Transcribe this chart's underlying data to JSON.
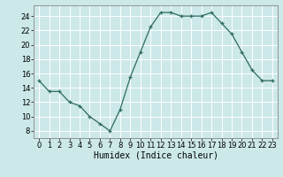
{
  "x": [
    0,
    1,
    2,
    3,
    4,
    5,
    6,
    7,
    8,
    9,
    10,
    11,
    12,
    13,
    14,
    15,
    16,
    17,
    18,
    19,
    20,
    21,
    22,
    23
  ],
  "y": [
    15,
    13.5,
    13.5,
    12,
    11.5,
    10,
    9,
    8,
    11,
    15.5,
    19,
    22.5,
    24.5,
    24.5,
    24,
    24,
    24,
    24.5,
    23,
    21.5,
    19,
    16.5,
    15,
    15
  ],
  "line_color": "#2e6b5e",
  "marker": "+",
  "bg_color": "#cce8e8",
  "grid_color": "#ffffff",
  "xlabel": "Humidex (Indice chaleur)",
  "xlabel_fontsize": 7,
  "tick_fontsize": 6,
  "ylim": [
    7,
    25.5
  ],
  "yticks": [
    8,
    10,
    12,
    14,
    16,
    18,
    20,
    22,
    24
  ],
  "xticks": [
    0,
    1,
    2,
    3,
    4,
    5,
    6,
    7,
    8,
    9,
    10,
    11,
    12,
    13,
    14,
    15,
    16,
    17,
    18,
    19,
    20,
    21,
    22,
    23
  ]
}
